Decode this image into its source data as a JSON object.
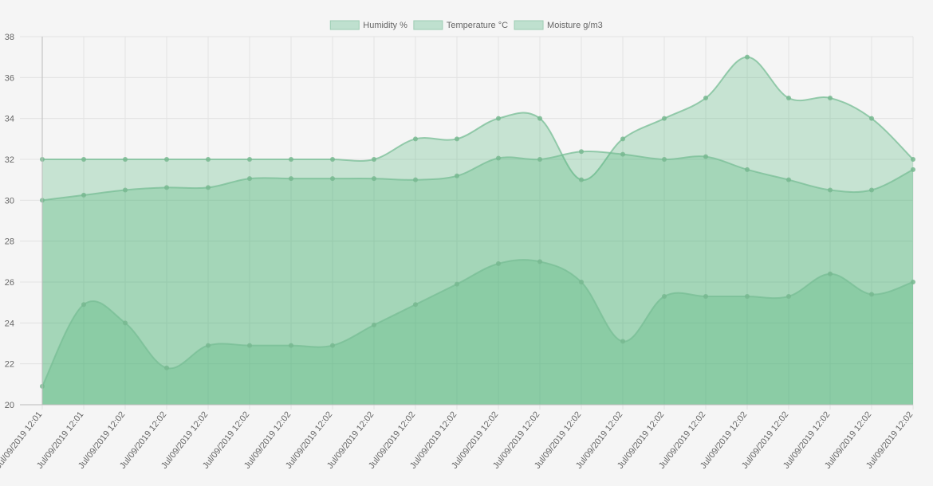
{
  "chart_data": {
    "type": "area",
    "title": "",
    "xlabel": "",
    "ylabel": "",
    "ylim": [
      20,
      38
    ],
    "yticks": [
      20,
      22,
      24,
      26,
      28,
      30,
      32,
      34,
      36,
      38
    ],
    "grid": true,
    "legend_position": "top-center",
    "categories": [
      "Jul/09/2019 12:01",
      "Jul/09/2019 12:01",
      "Jul/09/2019 12:02",
      "Jul/09/2019 12:02",
      "Jul/09/2019 12:02",
      "Jul/09/2019 12:02",
      "Jul/09/2019 12:02",
      "Jul/09/2019 12:02",
      "Jul/09/2019 12:02",
      "Jul/09/2019 12:02",
      "Jul/09/2019 12:02",
      "Jul/09/2019 12:02",
      "Jul/09/2019 12:02",
      "Jul/09/2019 12:02",
      "Jul/09/2019 12:02",
      "Jul/09/2019 12:02",
      "Jul/09/2019 12:02",
      "Jul/09/2019 12:02",
      "Jul/09/2019 12:02",
      "Jul/09/2019 12:02",
      "Jul/09/2019 12:02",
      "Jul/09/2019 12:02"
    ],
    "series": [
      {
        "name": "Humidity %",
        "values": [
          32,
          32,
          32,
          32,
          32,
          32,
          32,
          32,
          32,
          33,
          33,
          34,
          34,
          31,
          33,
          34,
          35,
          37,
          35,
          35,
          34,
          32
        ]
      },
      {
        "name": "Temperature °C",
        "values": [
          30,
          30.25,
          30.5,
          30.62,
          30.62,
          31.06,
          31.06,
          31.06,
          31.06,
          31,
          31.19,
          32.06,
          32,
          32.38,
          32.25,
          32,
          32.13,
          31.5,
          31,
          30.5,
          30.5,
          31.5
        ]
      },
      {
        "name": "Moisture g/m3",
        "values": [
          20.9,
          24.9,
          24,
          21.8,
          22.9,
          22.9,
          22.9,
          22.9,
          23.9,
          24.9,
          25.9,
          26.9,
          27,
          26,
          23.1,
          25.3,
          25.3,
          25.3,
          25.3,
          26.4,
          25.4,
          26
        ]
      }
    ],
    "colors": {
      "fill": "rgba(75,179,120,0.28)",
      "stroke": "rgba(120,190,150,0.75)",
      "point": "rgba(120,185,145,0.85)",
      "legend_fill": "#bfe0cf",
      "legend_stroke": "#9dcdb3",
      "grid": "#e2e2e2",
      "axis": "#bcbcbc",
      "tick": "#666666"
    }
  }
}
